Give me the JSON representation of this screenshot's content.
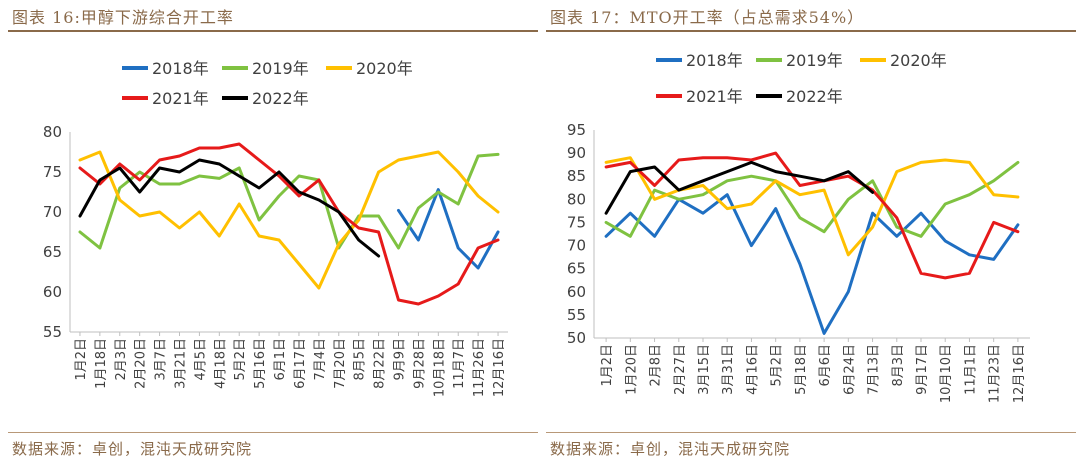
{
  "chart_data": [
    {
      "type": "line",
      "title": "图表 16:甲醇下游综合开工率",
      "source": "数据来源：卓创，混沌天成研究院",
      "x_categories": [
        "1月2日",
        "1月18日",
        "2月3日",
        "2月20日",
        "3月7日",
        "3月21日",
        "4月5日",
        "4月18日",
        "5月2日",
        "5月16日",
        "6月1日",
        "6月17日",
        "7月4日",
        "7月20日",
        "8月5日",
        "8月22日",
        "9月9日",
        "9月28日",
        "10月18日",
        "11月7日",
        "11月26日",
        "12月16日"
      ],
      "ylim": [
        55,
        80
      ],
      "y_ticks": [
        55,
        60,
        65,
        70,
        75,
        80
      ],
      "legend": [
        "2018年",
        "2019年",
        "2020年",
        "2021年",
        "2022年"
      ],
      "legend_position": "top",
      "grid": false,
      "series": [
        {
          "name": "2018年",
          "color": "#1f6fc2",
          "x": [
            0,
            1,
            2,
            3,
            4,
            5,
            6,
            7,
            8,
            9,
            10,
            11,
            12,
            13,
            14,
            15,
            16,
            17,
            18,
            19,
            20,
            21
          ],
          "values": [
            null,
            null,
            null,
            null,
            null,
            null,
            null,
            null,
            null,
            null,
            null,
            null,
            null,
            null,
            null,
            null,
            70.2,
            66.5,
            72.8,
            65.5,
            63.0,
            67.5
          ]
        },
        {
          "name": "2019年",
          "color": "#7fc241",
          "x": [
            0,
            1,
            2,
            3,
            4,
            5,
            6,
            7,
            8,
            9,
            10,
            11,
            12,
            13,
            14,
            15,
            16,
            17,
            18,
            19,
            20,
            21
          ],
          "values": [
            67.5,
            65.5,
            73.0,
            75.0,
            73.5,
            73.5,
            74.5,
            74.2,
            75.5,
            69.0,
            72.0,
            74.5,
            74.0,
            65.5,
            69.5,
            69.5,
            65.5,
            70.5,
            72.5,
            71.0,
            77.0,
            77.2
          ]
        },
        {
          "name": "2020年",
          "color": "#ffc000",
          "x": [
            0,
            1,
            2,
            3,
            4,
            5,
            6,
            7,
            8,
            9,
            10,
            11,
            12,
            13,
            14,
            15,
            16,
            17,
            18,
            19,
            20,
            21
          ],
          "values": [
            76.5,
            77.5,
            71.5,
            69.5,
            70.0,
            68.0,
            70.0,
            67.0,
            71.0,
            67.0,
            66.5,
            63.5,
            60.5,
            66.0,
            69.0,
            75.0,
            76.5,
            77.0,
            77.5,
            75.0,
            72.0,
            70.0
          ]
        },
        {
          "name": "2021年",
          "color": "#e61a1a",
          "x": [
            0,
            1,
            2,
            3,
            4,
            5,
            6,
            7,
            8,
            9,
            10,
            11,
            12,
            13,
            14,
            15,
            16,
            17,
            18,
            19,
            20,
            21
          ],
          "values": [
            75.5,
            73.5,
            76.0,
            74.0,
            76.5,
            77.0,
            78.0,
            78.0,
            78.5,
            76.5,
            74.5,
            72.0,
            74.0,
            70.0,
            68.0,
            67.5,
            59.0,
            58.5,
            59.5,
            61.0,
            65.5,
            66.5
          ]
        },
        {
          "name": "2022年",
          "color": "#000000",
          "x": [
            0,
            1,
            2,
            3,
            4,
            5,
            6,
            7,
            8,
            9,
            10,
            11,
            12,
            13,
            14,
            15,
            16,
            17,
            18,
            19,
            20,
            21
          ],
          "values": [
            69.5,
            74.0,
            75.5,
            72.5,
            75.5,
            75.0,
            76.5,
            76.0,
            74.5,
            73.0,
            75.0,
            72.5,
            71.5,
            70.0,
            66.5,
            64.5,
            null,
            null,
            null,
            null,
            null,
            null
          ]
        }
      ]
    },
    {
      "type": "line",
      "title": "图表 17：MTO开工率（占总需求54%）",
      "source": "数据来源：卓创，混沌天成研究院",
      "x_categories": [
        "1月2日",
        "1月20日",
        "2月8日",
        "2月27日",
        "3月15日",
        "3月31日",
        "4月16日",
        "5月2日",
        "5月18日",
        "6月6日",
        "6月24日",
        "7月13日",
        "8月3日",
        "9月17日",
        "10月10日",
        "11月1日",
        "11月23日",
        "12月16日"
      ],
      "ylim": [
        50,
        95
      ],
      "y_ticks": [
        50,
        55,
        60,
        65,
        70,
        75,
        80,
        85,
        90,
        95
      ],
      "legend": [
        "2018年",
        "2019年",
        "2020年",
        "2021年",
        "2022年"
      ],
      "legend_position": "top",
      "grid": false,
      "series": [
        {
          "name": "2018年",
          "color": "#1f6fc2",
          "x": [
            0,
            1,
            2,
            3,
            4,
            5,
            6,
            7,
            8,
            9,
            10,
            11,
            12,
            13,
            14,
            15,
            16,
            17
          ],
          "values": [
            72.0,
            77.0,
            72.0,
            80.0,
            77.0,
            81.0,
            70.0,
            78.0,
            66.0,
            51.0,
            60.0,
            77.0,
            72.0,
            77.0,
            71.0,
            68.0,
            67.0,
            74.5
          ]
        },
        {
          "name": "2019年",
          "color": "#7fc241",
          "x": [
            0,
            1,
            2,
            3,
            4,
            5,
            6,
            7,
            8,
            9,
            10,
            11,
            12,
            13,
            14,
            15,
            16,
            17
          ],
          "values": [
            75.0,
            72.0,
            82.0,
            80.0,
            81.0,
            84.0,
            85.0,
            84.0,
            76.0,
            73.0,
            80.0,
            84.0,
            74.0,
            72.0,
            79.0,
            81.0,
            84.0,
            88.0
          ]
        },
        {
          "name": "2020年",
          "color": "#ffc000",
          "x": [
            0,
            1,
            2,
            3,
            4,
            5,
            6,
            7,
            8,
            9,
            10,
            11,
            12,
            13,
            14,
            15,
            16,
            17
          ],
          "values": [
            88.0,
            89.0,
            80.0,
            82.0,
            83.0,
            78.0,
            79.0,
            84.0,
            81.0,
            82.0,
            68.0,
            74.0,
            86.0,
            88.0,
            88.5,
            88.0,
            81.0,
            80.5
          ]
        },
        {
          "name": "2021年",
          "color": "#e61a1a",
          "x": [
            0,
            1,
            2,
            3,
            4,
            5,
            6,
            7,
            8,
            9,
            10,
            11,
            12,
            13,
            14,
            15,
            16,
            17
          ],
          "values": [
            87.0,
            88.0,
            83.0,
            88.5,
            89.0,
            89.0,
            88.5,
            90.0,
            83.0,
            84.0,
            85.0,
            82.0,
            76.0,
            64.0,
            63.0,
            64.0,
            75.0,
            73.0
          ]
        },
        {
          "name": "2022年",
          "color": "#000000",
          "x": [
            0,
            1,
            2,
            3,
            4,
            5,
            6,
            7,
            8,
            9,
            10,
            11,
            12,
            13,
            14,
            15,
            16,
            17
          ],
          "values": [
            77.0,
            86.0,
            87.0,
            82.0,
            84.0,
            86.0,
            88.0,
            86.0,
            85.0,
            84.0,
            86.0,
            81.5,
            null,
            null,
            null,
            null,
            null,
            null
          ]
        }
      ]
    }
  ]
}
